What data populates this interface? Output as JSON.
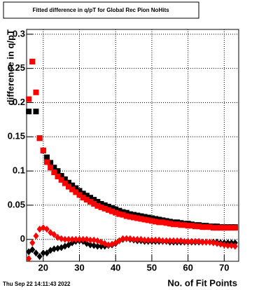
{
  "chart_data": {
    "type": "scatter",
    "title": "Fitted difference in q/pT for Global Rec Pion NoHits",
    "x_label": "No. of Fit Points",
    "y_label": "difference in q/pT",
    "annotation": "Thu Sep 22 14:11:43 2022",
    "grid": true,
    "xlim": [
      15.4,
      74
    ],
    "xticks": [
      20,
      30,
      40,
      50,
      60,
      70
    ],
    "ylim": [
      -0.032,
      0.307
    ],
    "yticks": [
      0,
      0.05,
      0.1,
      0.15,
      0.2,
      0.25,
      0.3
    ],
    "x": [
      16,
      17,
      18,
      19,
      20,
      21,
      22,
      23,
      24,
      25,
      26,
      27,
      28,
      29,
      30,
      31,
      32,
      33,
      34,
      35,
      36,
      37,
      38,
      39,
      40,
      41,
      42,
      43,
      44,
      45,
      46,
      47,
      48,
      49,
      50,
      51,
      52,
      53,
      54,
      55,
      56,
      57,
      58,
      59,
      60,
      61,
      62,
      63,
      64,
      65,
      66,
      67,
      68,
      69,
      70,
      71,
      72,
      73
    ],
    "series": [
      {
        "color": "#000000",
        "marker": "square",
        "values": [
          0.187,
          0.26,
          0.187,
          0.148,
          0.13,
          0.12,
          0.112,
          0.105,
          0.1,
          0.093,
          0.088,
          0.083,
          0.079,
          0.075,
          0.071,
          0.067,
          0.064,
          0.061,
          0.058,
          0.055,
          0.052,
          0.05,
          0.048,
          0.046,
          0.044,
          0.042,
          0.04,
          0.039,
          0.037,
          0.036,
          0.035,
          0.034,
          0.033,
          0.032,
          0.031,
          0.03,
          0.029,
          0.028,
          0.027,
          0.026,
          0.025,
          0.025,
          0.024,
          0.023,
          0.023,
          0.022,
          0.021,
          0.021,
          0.02,
          0.02,
          0.019,
          0.019,
          0.019,
          0.018,
          0.018,
          0.018,
          0.018,
          0.018
        ]
      },
      {
        "color": "#000000",
        "marker": "diamond",
        "values": [
          -0.018,
          -0.015,
          -0.02,
          -0.025,
          -0.02,
          -0.02,
          -0.016,
          -0.014,
          -0.013,
          -0.012,
          -0.01,
          -0.008,
          -0.005,
          -0.003,
          -0.002,
          -0.003,
          -0.006,
          -0.008,
          -0.009,
          -0.01,
          -0.01,
          -0.01,
          -0.009,
          -0.008,
          -0.006,
          -0.002,
          0,
          0.001,
          0,
          -0.001,
          -0.002,
          -0.002,
          -0.003,
          -0.003,
          -0.003,
          -0.003,
          -0.003,
          -0.003,
          -0.003,
          -0.004,
          -0.004,
          -0.004,
          -0.004,
          -0.004,
          -0.004,
          -0.004,
          -0.004,
          -0.004,
          -0.004,
          -0.004,
          -0.004,
          -0.004,
          -0.004,
          -0.005,
          -0.005,
          -0.005,
          -0.005,
          -0.005
        ]
      },
      {
        "color": "#ff0000",
        "marker": "square",
        "values": [
          0.205,
          0.26,
          0.215,
          0.148,
          0.13,
          0.113,
          0.105,
          0.098,
          0.092,
          0.087,
          0.082,
          0.077,
          0.073,
          0.069,
          0.065,
          0.061,
          0.058,
          0.055,
          0.052,
          0.049,
          0.047,
          0.045,
          0.043,
          0.041,
          0.039,
          0.037,
          0.036,
          0.034,
          0.033,
          0.032,
          0.031,
          0.03,
          0.029,
          0.028,
          0.027,
          0.026,
          0.025,
          0.025,
          0.024,
          0.023,
          0.022,
          0.022,
          0.021,
          0.021,
          0.02,
          0.02,
          0.019,
          0.019,
          0.018,
          0.018,
          0.018,
          0.017,
          0.017,
          0.017,
          0.017,
          0.017,
          0.017,
          0.017
        ]
      },
      {
        "color": "#ff0000",
        "marker": "diamond",
        "values": [
          -0.028,
          -0.005,
          0.005,
          0.015,
          0.017,
          0.015,
          0.01,
          0.007,
          0.003,
          0.001,
          0,
          0,
          0,
          0,
          0,
          0,
          0,
          -0.001,
          -0.001,
          -0.002,
          -0.004,
          -0.006,
          -0.008,
          -0.007,
          -0.005,
          -0.002,
          0.001,
          0.001,
          0.001,
          0,
          0,
          0,
          -0.001,
          -0.001,
          -0.001,
          -0.001,
          -0.001,
          -0.002,
          -0.002,
          -0.002,
          -0.002,
          -0.002,
          -0.002,
          -0.003,
          -0.003,
          -0.003,
          -0.003,
          -0.003,
          -0.004,
          -0.004,
          -0.004,
          -0.005,
          -0.006,
          -0.007,
          -0.008,
          -0.009,
          -0.009,
          -0.01
        ]
      }
    ]
  }
}
